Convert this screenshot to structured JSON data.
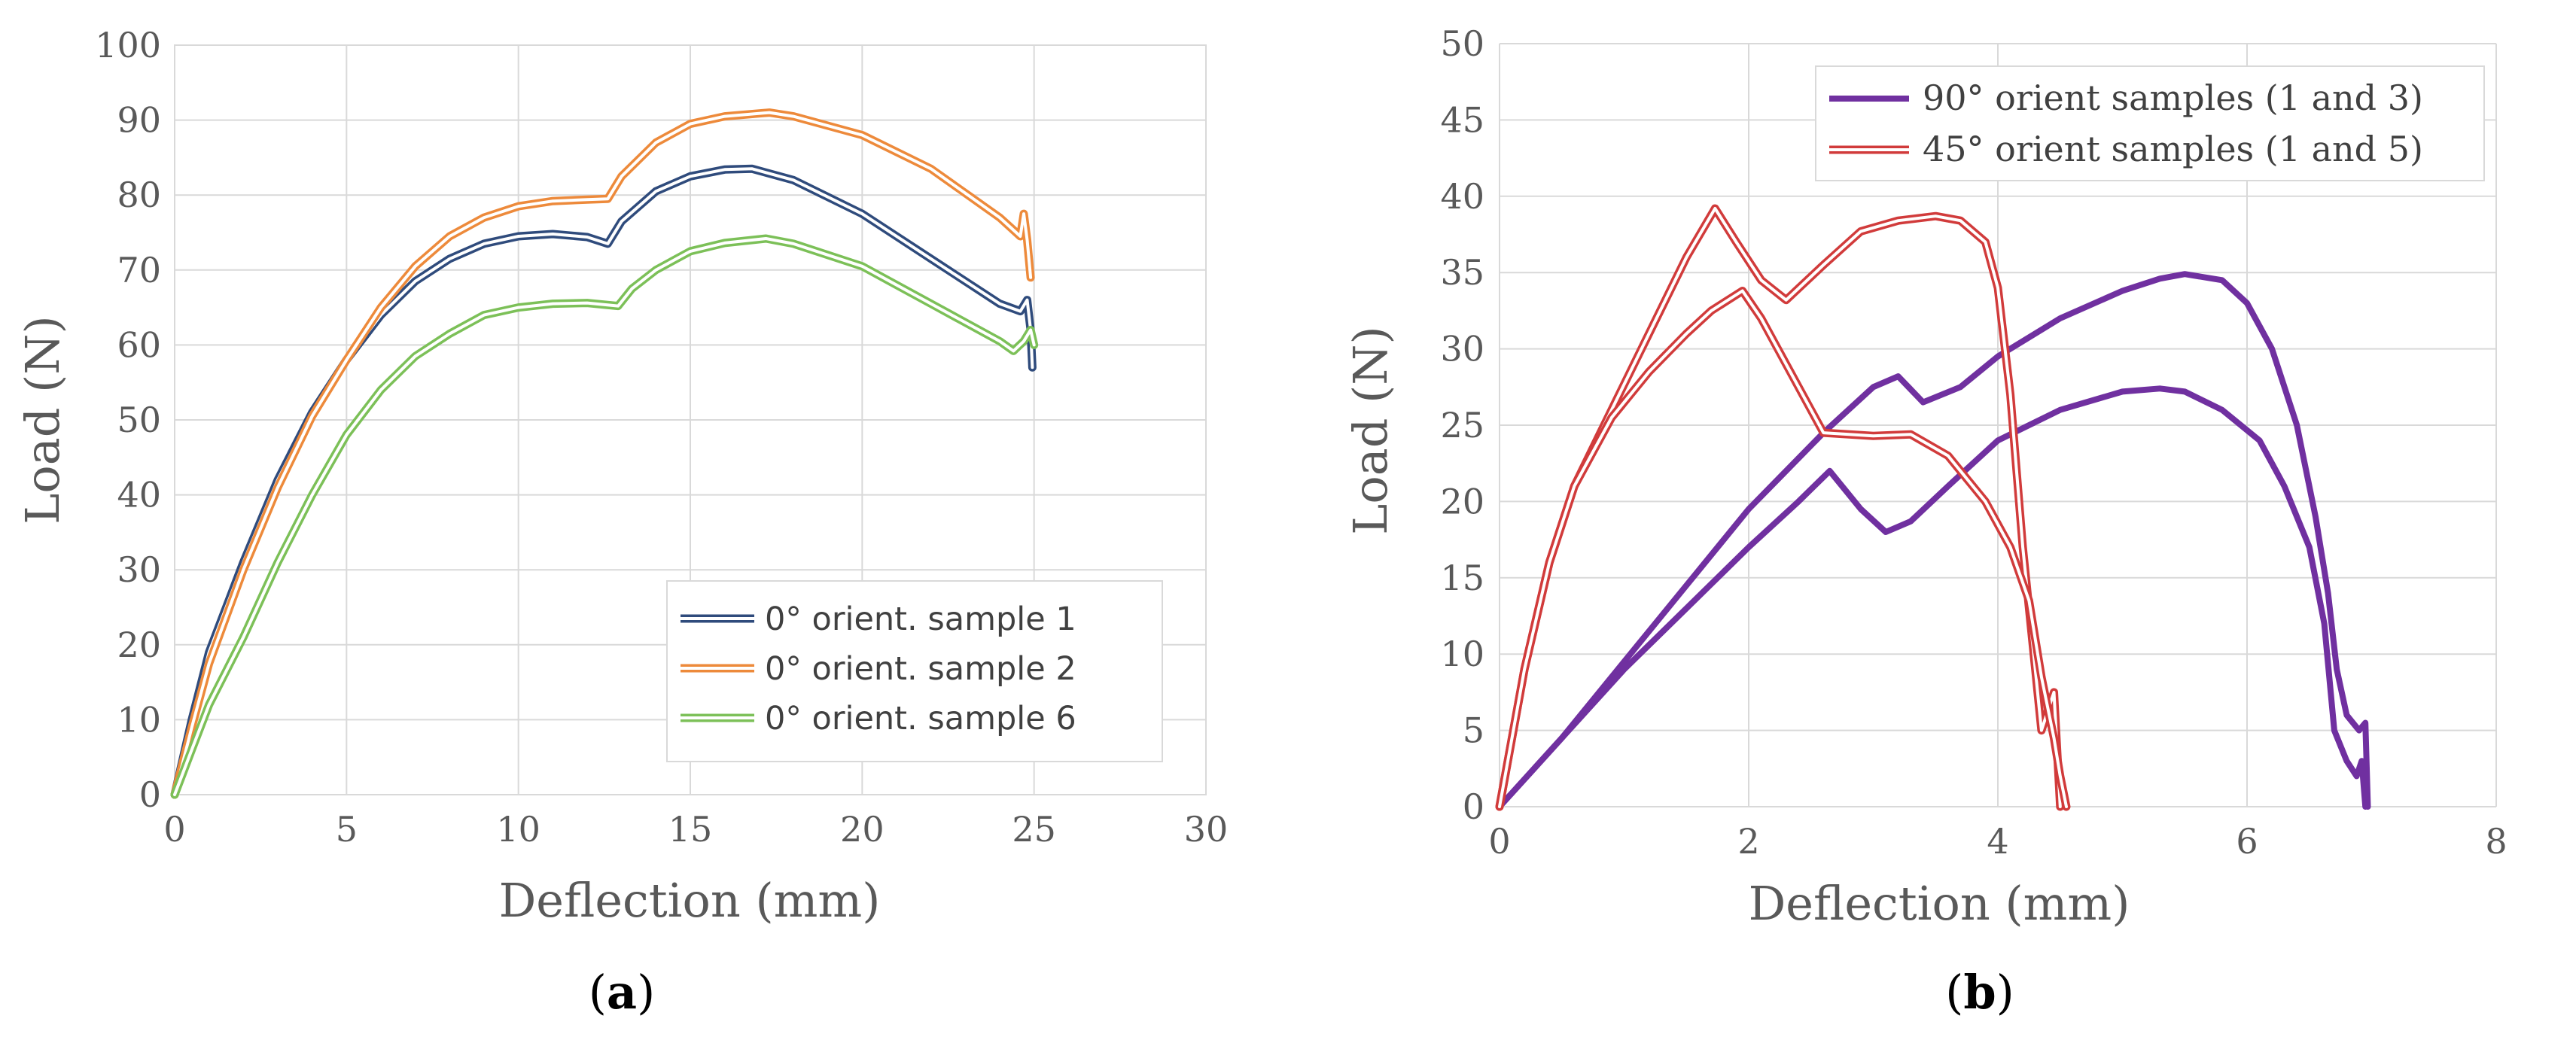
{
  "chart_data": [
    {
      "type": "line",
      "panel_label": "a",
      "caption_open": "(",
      "caption_close": ")",
      "xlabel": "Deflection (mm)",
      "ylabel": "Load (N)",
      "xlim": [
        0,
        30
      ],
      "ylim": [
        0,
        100
      ],
      "xticks": [
        0,
        5,
        10,
        15,
        20,
        25,
        30
      ],
      "yticks": [
        0,
        10,
        20,
        30,
        40,
        50,
        60,
        70,
        80,
        90,
        100
      ],
      "grid": true,
      "legend_position": "bottom-right",
      "series": [
        {
          "name": "0° orient. sample 1",
          "color": "#2f4b7c",
          "style": "double",
          "x": [
            0,
            0.5,
            1,
            2,
            3,
            4,
            5,
            6,
            7,
            8,
            9,
            10,
            11,
            12,
            12.6,
            13,
            14,
            15,
            16,
            16.8,
            18,
            20,
            22,
            24,
            24.6,
            24.8,
            24.9,
            24.95
          ],
          "y": [
            0,
            10,
            19,
            31,
            42,
            51,
            58,
            64,
            68.5,
            71.5,
            73.5,
            74.5,
            74.8,
            74.4,
            73.5,
            76.5,
            80.5,
            82.5,
            83.4,
            83.5,
            82,
            77.5,
            71.5,
            65.5,
            64.5,
            66,
            62,
            57
          ]
        },
        {
          "name": "0° orient. sample 2",
          "color": "#ed8a3b",
          "style": "double",
          "x": [
            0,
            0.5,
            1,
            2,
            3,
            4,
            5,
            6,
            7,
            8,
            9,
            10,
            11,
            12,
            12.6,
            13,
            14,
            15,
            16,
            17.3,
            18,
            20,
            22,
            24,
            24.6,
            24.7,
            24.8,
            24.9
          ],
          "y": [
            0,
            9,
            17.5,
            30,
            41,
            50.5,
            58,
            65,
            70.5,
            74.5,
            77,
            78.5,
            79.2,
            79.4,
            79.5,
            82.5,
            87,
            89.5,
            90.5,
            91,
            90.5,
            88,
            83.5,
            77,
            74.5,
            77.5,
            74,
            69
          ]
        },
        {
          "name": "0° orient. sample 6",
          "color": "#7cc058",
          "style": "double",
          "x": [
            0,
            0.5,
            1,
            2,
            3,
            4,
            5,
            6,
            7,
            8,
            9,
            10,
            11,
            12,
            12.9,
            13.3,
            14,
            15,
            16,
            17.2,
            18,
            20,
            22,
            24,
            24.4,
            24.7,
            24.9,
            25
          ],
          "y": [
            0,
            6,
            12,
            21,
            31,
            40,
            48,
            54,
            58.5,
            61.5,
            64,
            65,
            65.5,
            65.6,
            65.2,
            67.5,
            70,
            72.5,
            73.6,
            74.2,
            73.5,
            70.5,
            65.5,
            60.5,
            59.2,
            60.5,
            62,
            60
          ]
        }
      ]
    },
    {
      "type": "line",
      "panel_label": "b",
      "caption_open": "(",
      "caption_close": ")",
      "xlabel": "Deflection (mm)",
      "ylabel": "Load (N)",
      "xlim": [
        0,
        8
      ],
      "ylim": [
        0,
        50
      ],
      "xticks": [
        0,
        2,
        4,
        6,
        8
      ],
      "yticks": [
        0,
        5,
        10,
        15,
        20,
        25,
        30,
        35,
        40,
        45,
        50
      ],
      "grid": true,
      "legend_position": "top-right",
      "series": [
        {
          "name": "90° orient samples (1 and 3)",
          "color": "#7030a0",
          "style": "thick",
          "curves": [
            {
              "x": [
                0,
                0.5,
                1,
                1.5,
                2,
                2.6,
                3.0,
                3.2,
                3.4,
                3.7,
                4.0,
                4.5,
                5.0,
                5.3,
                5.5,
                5.8,
                6.0,
                6.2,
                6.4,
                6.55,
                6.65,
                6.72,
                6.8,
                6.9,
                6.95,
                6.97
              ],
              "y": [
                0,
                4.5,
                9.5,
                14.5,
                19.5,
                24.5,
                27.5,
                28.2,
                26.5,
                27.5,
                29.5,
                32,
                33.8,
                34.6,
                34.9,
                34.5,
                33,
                30,
                25,
                19,
                14,
                9,
                6,
                5,
                5.5,
                0
              ]
            },
            {
              "x": [
                0,
                0.5,
                1,
                1.5,
                2,
                2.4,
                2.65,
                2.9,
                3.1,
                3.3,
                3.6,
                4.0,
                4.5,
                5.0,
                5.3,
                5.5,
                5.8,
                6.1,
                6.3,
                6.5,
                6.62,
                6.7,
                6.8,
                6.88,
                6.92,
                6.95
              ],
              "y": [
                0,
                4.5,
                9,
                13,
                17,
                20,
                22,
                19.5,
                18,
                18.7,
                21,
                24,
                26,
                27.2,
                27.4,
                27.2,
                26,
                24,
                21,
                17,
                12,
                5,
                3,
                2,
                3,
                0
              ]
            }
          ]
        },
        {
          "name": "45° orient samples (1 and 5)",
          "color": "#d13b3b",
          "style": "double",
          "curves": [
            {
              "x": [
                0,
                0.2,
                0.4,
                0.6,
                0.9,
                1.2,
                1.5,
                1.73,
                1.9,
                2.1,
                2.3,
                2.6,
                2.9,
                3.2,
                3.5,
                3.7,
                3.9,
                4.0,
                4.1,
                4.2,
                4.3,
                4.35,
                4.45,
                4.5
              ],
              "y": [
                0,
                9,
                16,
                21,
                26,
                31,
                36,
                39.2,
                37,
                34.5,
                33.2,
                35.5,
                37.7,
                38.4,
                38.7,
                38.4,
                37,
                34,
                27,
                17,
                9,
                5,
                7.5,
                0
              ]
            },
            {
              "x": [
                0,
                0.2,
                0.4,
                0.6,
                0.9,
                1.2,
                1.5,
                1.7,
                1.95,
                2.1,
                2.3,
                2.6,
                3.0,
                3.3,
                3.6,
                3.9,
                4.1,
                4.25,
                4.35,
                4.45,
                4.5,
                4.55
              ],
              "y": [
                0,
                9,
                16,
                21,
                25.5,
                28.5,
                31,
                32.5,
                33.8,
                32,
                29,
                24.5,
                24.3,
                24.4,
                23,
                20,
                17,
                13.5,
                8.5,
                4.5,
                2,
                0
              ]
            }
          ]
        }
      ]
    }
  ]
}
